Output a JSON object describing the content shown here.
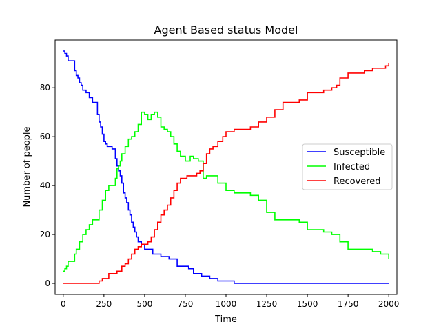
{
  "chart_data": {
    "type": "line",
    "title": "Agent Based status Model",
    "xlabel": "Time",
    "ylabel": "Number of people",
    "xlim": [
      -50,
      2050
    ],
    "ylim": [
      -4.5,
      99.5
    ],
    "xticks": [
      0,
      250,
      500,
      750,
      1000,
      1250,
      1500,
      1750,
      2000
    ],
    "yticks": [
      0,
      20,
      40,
      60,
      80
    ],
    "xtick_labels": [
      "0",
      "250",
      "500",
      "750",
      "1000",
      "1250",
      "1500",
      "1750",
      "2000"
    ],
    "ytick_labels": [
      "0",
      "20",
      "40",
      "60",
      "80"
    ],
    "grid": false,
    "legend_position": "center-right",
    "series": [
      {
        "name": "Susceptible",
        "color": "#0000ff",
        "x": [
          0,
          10,
          20,
          30,
          60,
          70,
          80,
          90,
          100,
          110,
          120,
          140,
          160,
          180,
          200,
          210,
          220,
          230,
          240,
          250,
          260,
          270,
          280,
          300,
          320,
          330,
          340,
          350,
          360,
          370,
          380,
          390,
          400,
          410,
          420,
          430,
          440,
          450,
          460,
          480,
          500,
          550,
          600,
          650,
          700,
          770,
          800,
          850,
          900,
          950,
          1000,
          1050,
          1100,
          1500,
          2000
        ],
        "y": [
          95,
          94,
          93,
          91,
          91,
          87,
          85,
          84,
          82,
          81,
          79,
          78,
          76,
          74,
          74,
          69,
          66,
          64,
          61,
          58,
          57,
          56,
          56,
          55,
          51,
          48,
          46,
          44,
          41,
          37,
          35,
          33,
          30,
          28,
          25,
          23,
          21,
          19,
          17,
          16,
          14,
          12,
          11,
          10,
          7,
          6,
          4,
          3,
          2,
          1,
          1,
          0,
          0,
          0,
          0
        ]
      },
      {
        "name": "Infected",
        "color": "#00ff00",
        "x": [
          0,
          10,
          20,
          30,
          60,
          70,
          80,
          100,
          120,
          140,
          160,
          180,
          200,
          220,
          240,
          260,
          280,
          300,
          320,
          330,
          340,
          350,
          360,
          380,
          400,
          420,
          440,
          460,
          480,
          500,
          520,
          540,
          560,
          580,
          600,
          620,
          640,
          660,
          680,
          700,
          720,
          750,
          780,
          800,
          830,
          860,
          880,
          900,
          950,
          1000,
          1050,
          1100,
          1150,
          1200,
          1250,
          1300,
          1400,
          1450,
          1500,
          1550,
          1600,
          1650,
          1700,
          1750,
          1800,
          1850,
          1900,
          1950,
          2000
        ],
        "y": [
          5,
          6,
          7,
          9,
          9,
          12,
          14,
          17,
          20,
          22,
          24,
          26,
          26,
          30,
          34,
          38,
          40,
          40,
          43,
          47,
          48,
          50,
          53,
          56,
          59,
          60,
          62,
          65,
          70,
          69,
          67,
          69,
          70,
          68,
          64,
          63,
          62,
          60,
          57,
          54,
          52,
          50,
          52,
          51,
          50,
          43,
          44,
          44,
          41,
          38,
          37,
          37,
          36,
          34,
          29,
          26,
          26,
          25,
          22,
          22,
          21,
          20,
          17,
          14,
          14,
          14,
          13,
          12,
          10
        ]
      },
      {
        "name": "Recovered",
        "color": "#ff0000",
        "x": [
          0,
          100,
          200,
          220,
          240,
          280,
          330,
          360,
          380,
          400,
          420,
          440,
          460,
          480,
          500,
          520,
          540,
          560,
          580,
          600,
          620,
          640,
          660,
          680,
          700,
          720,
          760,
          800,
          820,
          840,
          860,
          880,
          900,
          920,
          950,
          980,
          1000,
          1050,
          1100,
          1150,
          1200,
          1250,
          1300,
          1350,
          1400,
          1450,
          1500,
          1550,
          1600,
          1650,
          1680,
          1700,
          1750,
          1800,
          1850,
          1900,
          1950,
          1980,
          2000
        ],
        "y": [
          0,
          0,
          0,
          1,
          2,
          4,
          5,
          7,
          8,
          10,
          12,
          14,
          15,
          16,
          16,
          17,
          19,
          22,
          25,
          28,
          30,
          32,
          35,
          38,
          41,
          43,
          44,
          44,
          45,
          46,
          49,
          53,
          55,
          56,
          58,
          60,
          62,
          63,
          63,
          64,
          66,
          68,
          71,
          74,
          74,
          75,
          78,
          78,
          79,
          80,
          81,
          84,
          86,
          86,
          87,
          88,
          88,
          89,
          90
        ]
      }
    ]
  }
}
